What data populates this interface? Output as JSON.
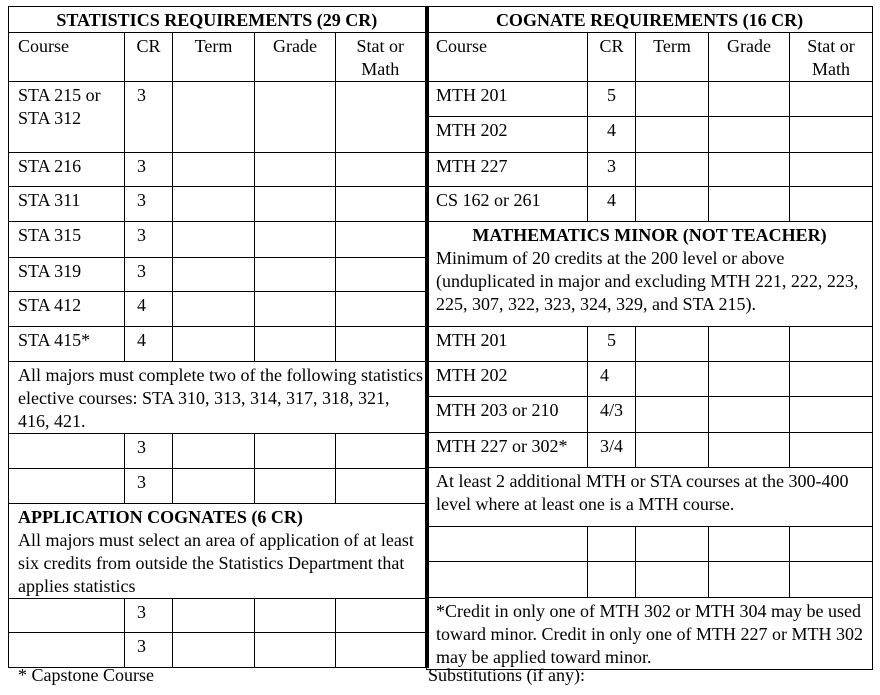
{
  "statistics": {
    "title": "STATISTICS REQUIREMENTS (29 CR)",
    "headers": [
      "Course",
      "CR",
      "Term",
      "Grade",
      "Stat or Math"
    ],
    "rows": [
      {
        "course": "STA 215 or STA 312",
        "cr": "3"
      },
      {
        "course": "STA 216",
        "cr": "3"
      },
      {
        "course": "STA 311",
        "cr": "3"
      },
      {
        "course": "STA 315",
        "cr": "3"
      },
      {
        "course": "STA 319",
        "cr": "3"
      },
      {
        "course": "STA 412",
        "cr": "4"
      },
      {
        "course": "STA 415*",
        "cr": "4"
      }
    ],
    "elective_note": "All majors must complete two of the following statistics elective courses:  STA 310, 313, 314, 317, 318, 321, 416, 421.",
    "elective_rows": [
      {
        "course": "",
        "cr": "3"
      },
      {
        "course": "",
        "cr": "3"
      }
    ]
  },
  "application": {
    "title": "APPLICATION COGNATES (6 CR)",
    "note": "All majors must select an area of application of at least six credits from outside the Statistics Department that applies statistics",
    "rows": [
      {
        "course": "",
        "cr": "3"
      },
      {
        "course": "",
        "cr": "3"
      }
    ]
  },
  "cognate": {
    "title": "COGNATE REQUIREMENTS (16 CR)",
    "headers": [
      "Course",
      "CR",
      "Term",
      "Grade",
      "Stat or Math"
    ],
    "rows": [
      {
        "course": "MTH 201",
        "cr": "5"
      },
      {
        "course": "MTH 202",
        "cr": "4"
      },
      {
        "course": "MTH 227",
        "cr": "3"
      },
      {
        "course": "CS 162 or 261",
        "cr": "4"
      }
    ]
  },
  "minor": {
    "title": "MATHEMATICS MINOR (NOT TEACHER)",
    "note": "Minimum of 20 credits at the 200 level or above (unduplicated in major and excluding MTH 221, 222, 223, 225, 307, 322, 323, 324, 329, and STA 215).",
    "rows": [
      {
        "course": "MTH 201",
        "cr": "5"
      },
      {
        "course": "MTH 202",
        "cr": "4"
      },
      {
        "course": "MTH 203 or 210",
        "cr": "4/3"
      },
      {
        "course": "MTH 227 or 302*",
        "cr": "3/4"
      }
    ],
    "additional_note": "At least 2 additional MTH or STA courses at the 300-400 level where at least one is a MTH course.",
    "additional_rows": [
      {
        "course": "",
        "cr": ""
      },
      {
        "course": "",
        "cr": ""
      }
    ],
    "footnote": "*Credit in only one of MTH 302 or MTH 304 may be used toward minor.  Credit in only one of MTH 227 or MTH 302 may be applied toward minor."
  },
  "footer": {
    "capstone": "* Capstone Course",
    "substitutions": "Substitutions (if any):"
  }
}
